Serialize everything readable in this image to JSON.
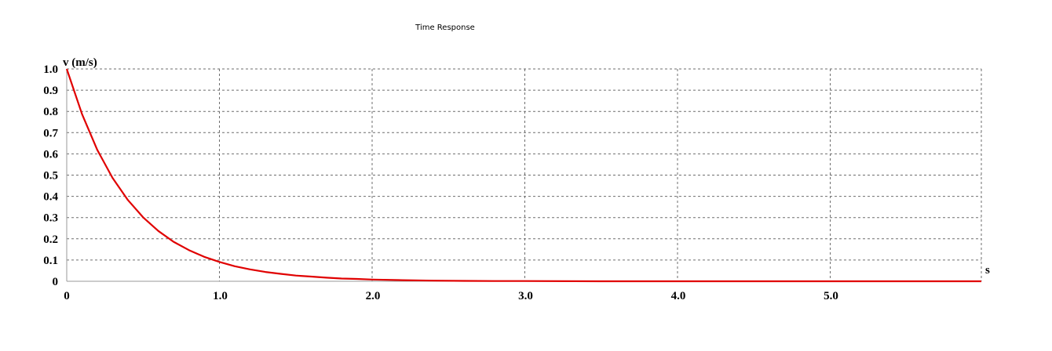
{
  "chart_data": {
    "type": "line",
    "title": "Time Response",
    "ylabel": "v (m/s)",
    "xlabel": "s",
    "xlim": [
      0,
      6.0
    ],
    "ylim": [
      0,
      1.0
    ],
    "grid": true,
    "x_ticks": [
      {
        "value": 0,
        "label": "0"
      },
      {
        "value": 1.0,
        "label": "1.0"
      },
      {
        "value": 2.0,
        "label": "2.0"
      },
      {
        "value": 3.0,
        "label": "3.0"
      },
      {
        "value": 4.0,
        "label": "4.0"
      },
      {
        "value": 5.0,
        "label": "5.0"
      }
    ],
    "y_ticks": [
      {
        "value": 0,
        "label": "0"
      },
      {
        "value": 0.1,
        "label": "0.1"
      },
      {
        "value": 0.2,
        "label": "0.2"
      },
      {
        "value": 0.3,
        "label": "0.3"
      },
      {
        "value": 0.4,
        "label": "0.4"
      },
      {
        "value": 0.5,
        "label": "0.5"
      },
      {
        "value": 0.6,
        "label": "0.6"
      },
      {
        "value": 0.7,
        "label": "0.7"
      },
      {
        "value": 0.8,
        "label": "0.8"
      },
      {
        "value": 0.9,
        "label": "0.9"
      },
      {
        "value": 1.0,
        "label": "1.0"
      }
    ],
    "series": [
      {
        "color": "#e00000",
        "x": [
          0,
          0.1,
          0.2,
          0.3,
          0.4,
          0.5,
          0.6,
          0.7,
          0.8,
          0.9,
          1.0,
          1.1,
          1.2,
          1.3,
          1.4,
          1.5,
          1.6,
          1.7,
          1.8,
          1.9,
          2.0,
          2.2,
          2.4,
          2.6,
          2.8,
          3.0,
          3.5,
          4.0,
          4.5,
          5.0,
          5.5,
          6.0
        ],
        "y": [
          1.0,
          0.787,
          0.619,
          0.487,
          0.383,
          0.301,
          0.237,
          0.186,
          0.147,
          0.115,
          0.091,
          0.071,
          0.056,
          0.044,
          0.035,
          0.027,
          0.022,
          0.017,
          0.013,
          0.011,
          0.008,
          0.005,
          0.003,
          0.002,
          0.001,
          0.001,
          0.0,
          0.0,
          0.0,
          0.0,
          0.0,
          0.0
        ]
      }
    ]
  }
}
